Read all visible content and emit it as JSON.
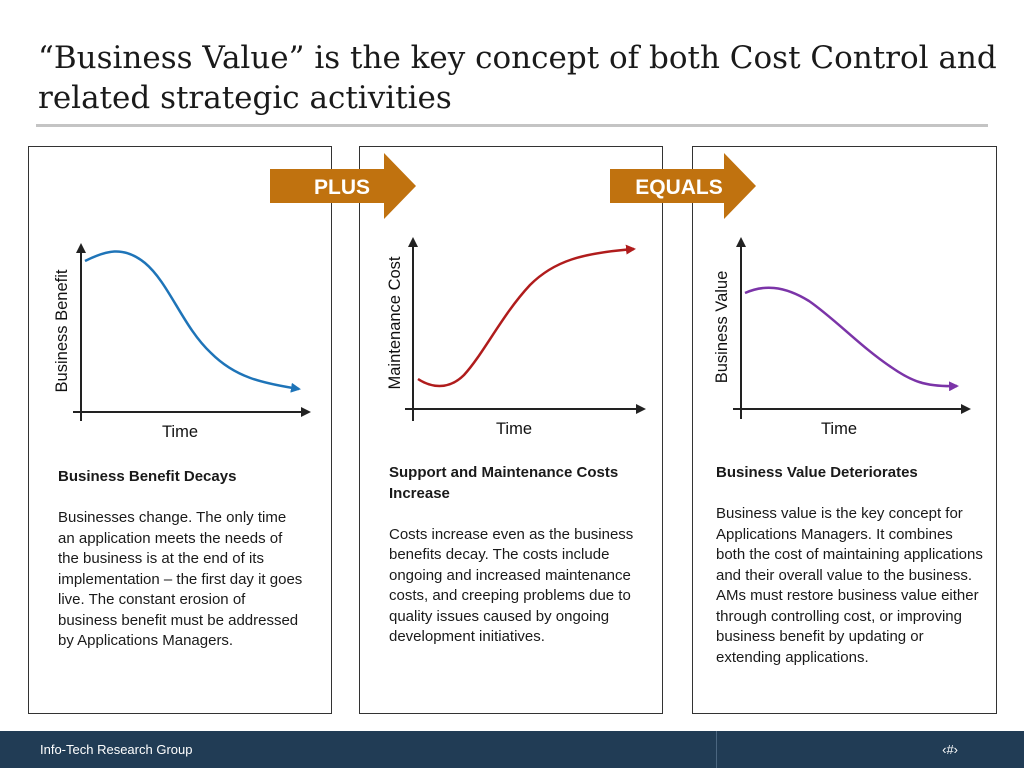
{
  "slide": {
    "title": "“Business Value” is the key concept of both Cost Control and related strategic activities"
  },
  "operators": {
    "plus": "PLUS",
    "equals": "EQUALS",
    "color": "#c0720f"
  },
  "panels": [
    {
      "chart": {
        "ylabel": "Business Benefit",
        "xlabel": "Time",
        "curve_color": "#1e74b8",
        "trend": "decreasing"
      },
      "heading": "Business Benefit Decays",
      "body": "Businesses change. The only time an application meets the needs of the business is at the end of its implementation – the first day it goes live. The constant erosion of business benefit must be addressed by Applications Managers."
    },
    {
      "chart": {
        "ylabel": "Maintenance Cost",
        "xlabel": "Time",
        "curve_color": "#b01c1c",
        "trend": "increasing"
      },
      "heading": "Support and Maintenance Costs Increase",
      "body": "Costs increase even as the business benefits decay. The costs include ongoing and increased maintenance costs, and creeping problems due to quality issues caused by ongoing development initiatives."
    },
    {
      "chart": {
        "ylabel": "Business Value",
        "xlabel": "Time",
        "curve_color": "#7b34a8",
        "trend": "decreasing"
      },
      "heading": "Business Value Deteriorates",
      "body": "Business value is the key concept for Applications Managers. It combines both the cost of maintaining applications and their overall value to the business. AMs must restore business value either through controlling cost, or improving business benefit by updating or extending applications."
    }
  ],
  "footer": {
    "organization": "Info-Tech Research Group",
    "page_number": "‹#›",
    "background": "#213c55"
  }
}
